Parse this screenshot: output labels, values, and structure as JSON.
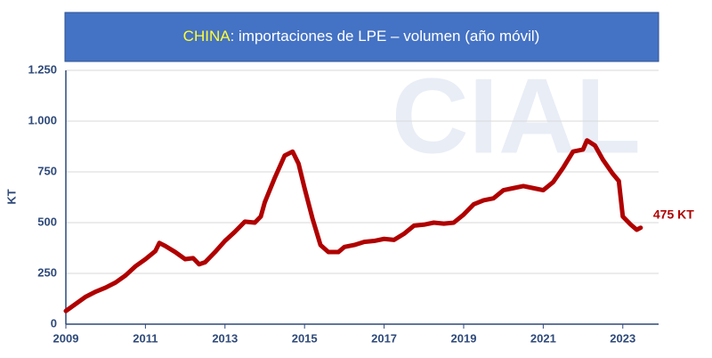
{
  "chart_data": {
    "type": "line",
    "title_highlight": "CHINA",
    "title": ": importaciones de LPE – volumen (año móvil)",
    "watermark": "CIAL",
    "ylabel": "KT",
    "annotation": "475 KT",
    "xlim": [
      2009,
      2023.9
    ],
    "xticks": [
      2009,
      2011,
      2013,
      2015,
      2017,
      2019,
      2021,
      2023
    ],
    "ylim": [
      0,
      1250
    ],
    "yticks": [
      0,
      250,
      500,
      750,
      {
        "value": 1000,
        "label": "1.000"
      },
      {
        "value": 1250,
        "label": "1.250"
      }
    ],
    "grid": true,
    "series": [
      {
        "color": "#b00000",
        "x": [
          2009.0,
          2009.25,
          2009.5,
          2009.75,
          2010.0,
          2010.25,
          2010.5,
          2010.75,
          2011.0,
          2011.25,
          2011.35,
          2011.5,
          2011.75,
          2012.0,
          2012.2,
          2012.35,
          2012.5,
          2012.75,
          2013.0,
          2013.25,
          2013.5,
          2013.75,
          2013.9,
          2014.0,
          2014.25,
          2014.5,
          2014.7,
          2014.85,
          2015.0,
          2015.2,
          2015.4,
          2015.6,
          2015.85,
          2016.0,
          2016.25,
          2016.5,
          2016.75,
          2017.0,
          2017.25,
          2017.5,
          2017.75,
          2018.0,
          2018.25,
          2018.5,
          2018.75,
          2019.0,
          2019.25,
          2019.5,
          2019.75,
          2020.0,
          2020.25,
          2020.5,
          2020.75,
          2021.0,
          2021.25,
          2021.5,
          2021.75,
          2022.0,
          2022.1,
          2022.3,
          2022.5,
          2022.75,
          2022.9,
          2023.0,
          2023.2,
          2023.35,
          2023.45
        ],
        "values": [
          65,
          100,
          135,
          160,
          180,
          205,
          240,
          285,
          320,
          360,
          400,
          385,
          355,
          320,
          325,
          295,
          305,
          355,
          410,
          455,
          505,
          500,
          530,
          600,
          720,
          830,
          850,
          790,
          670,
          520,
          390,
          355,
          355,
          380,
          390,
          405,
          410,
          420,
          415,
          445,
          485,
          490,
          500,
          495,
          500,
          540,
          590,
          610,
          620,
          660,
          670,
          680,
          670,
          660,
          700,
          770,
          850,
          860,
          905,
          880,
          810,
          740,
          705,
          530,
          490,
          465,
          475
        ]
      }
    ]
  }
}
